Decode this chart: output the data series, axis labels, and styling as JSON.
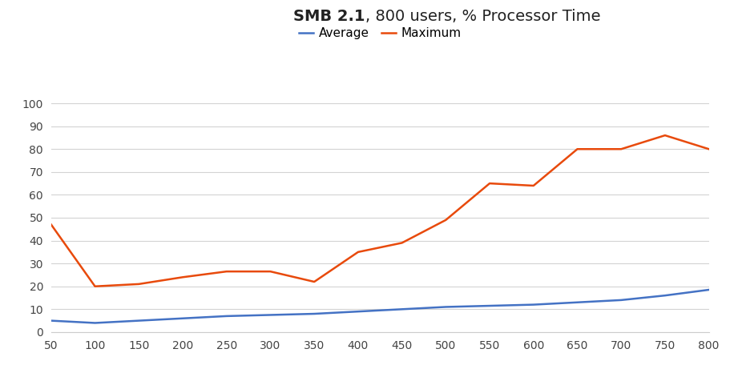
{
  "title_bold": "SMB 2.1",
  "title_regular": ", 800 users, % Processor Time",
  "x_values": [
    50,
    100,
    150,
    200,
    250,
    300,
    350,
    400,
    450,
    500,
    550,
    600,
    650,
    700,
    750,
    800
  ],
  "average": [
    5,
    4,
    5,
    6,
    7,
    7.5,
    8,
    9,
    10,
    11,
    11.5,
    12,
    13,
    14,
    16,
    18.5
  ],
  "maximum": [
    47,
    20,
    21,
    24,
    26.5,
    26.5,
    22,
    35,
    39,
    49,
    65,
    64,
    80,
    80,
    86,
    80
  ],
  "average_color": "#4472C4",
  "maximum_color": "#E84A0C",
  "background_color": "#ffffff",
  "ylim": [
    0,
    100
  ],
  "yticks": [
    0,
    10,
    20,
    30,
    40,
    50,
    60,
    70,
    80,
    90,
    100
  ],
  "xticks": [
    50,
    100,
    150,
    200,
    250,
    300,
    350,
    400,
    450,
    500,
    550,
    600,
    650,
    700,
    750,
    800
  ],
  "legend_labels": [
    "Average",
    "Maximum"
  ],
  "grid_color": "#d3d3d3",
  "line_width": 1.8,
  "font_family": "sans-serif"
}
